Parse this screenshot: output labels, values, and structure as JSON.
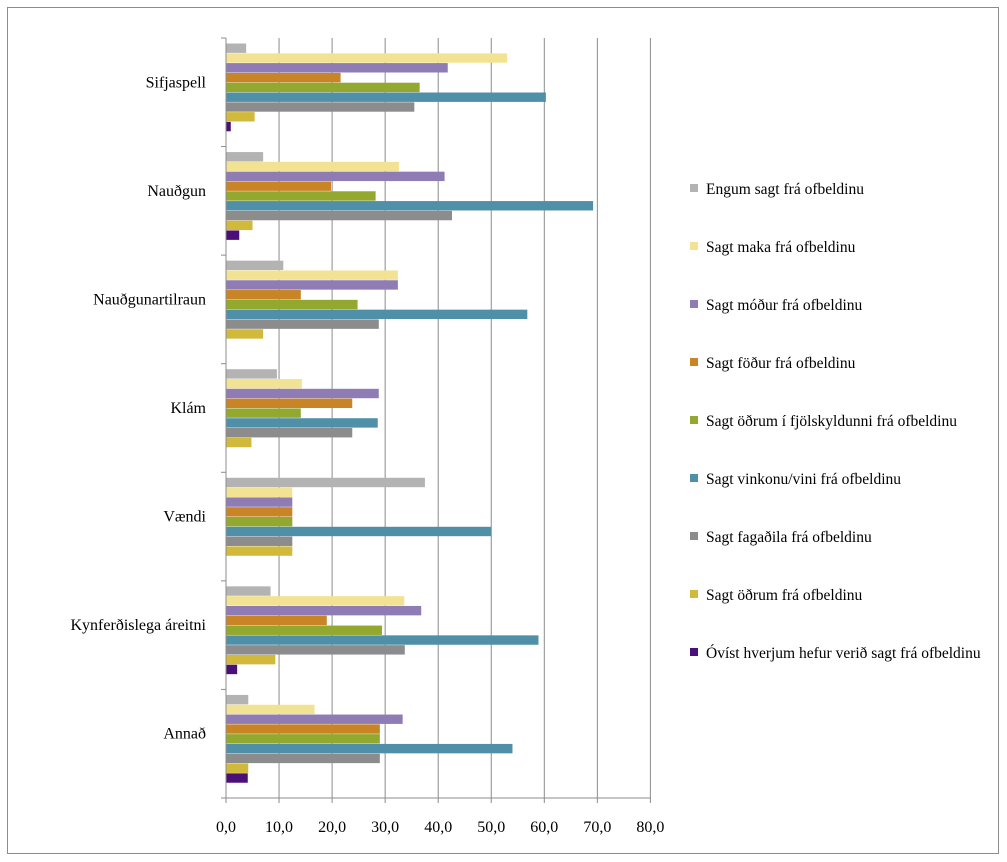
{
  "chart_data": {
    "type": "bar",
    "orientation": "horizontal",
    "categories": [
      "Sifjaspell",
      "Nauðgun",
      "Nauðgunartilraun",
      "Klám",
      "Vændi",
      "Kynferðislega áreitni",
      "Annað"
    ],
    "xlim": [
      0,
      80
    ],
    "xticks": [
      "0,0",
      "10,0",
      "20,0",
      "30,0",
      "40,0",
      "50,0",
      "60,0",
      "70,0",
      "80,0"
    ],
    "grid": "vertical",
    "legend_position": "right",
    "title": "",
    "xlabel": "",
    "ylabel": "",
    "series": [
      {
        "name": "Engum sagt frá ofbeldinu",
        "color": "#b3b3b3",
        "values": [
          3.8,
          7.0,
          10.8,
          9.6,
          37.5,
          8.4,
          4.2
        ]
      },
      {
        "name": "Sagt maka frá ofbeldinu",
        "color": "#f2e394",
        "values": [
          53.0,
          32.6,
          32.4,
          14.3,
          12.5,
          33.6,
          16.7
        ]
      },
      {
        "name": "Sagt móður frá ofbeldinu",
        "color": "#8f7cb5",
        "values": [
          41.8,
          41.2,
          32.4,
          28.8,
          12.5,
          36.8,
          33.3
        ]
      },
      {
        "name": "Sagt föður frá ofbeldinu",
        "color": "#c98425",
        "values": [
          21.6,
          19.8,
          14.1,
          23.8,
          12.5,
          19.0,
          29.0
        ]
      },
      {
        "name": "Sagt öðrum í fjölskyldunni frá ofbeldinu",
        "color": "#93a82e",
        "values": [
          36.5,
          28.2,
          24.8,
          14.1,
          12.5,
          29.4,
          29.0
        ]
      },
      {
        "name": "Sagt vinkonu/vini frá ofbeldinu",
        "color": "#4f8fa7",
        "values": [
          60.3,
          69.2,
          56.8,
          28.6,
          50.0,
          58.9,
          54.0
        ]
      },
      {
        "name": "Sagt fagaðila frá ofbeldinu",
        "color": "#8c8c8c",
        "values": [
          35.5,
          42.6,
          28.8,
          23.8,
          12.5,
          33.7,
          29.0
        ]
      },
      {
        "name": "Sagt öðrum frá ofbeldinu",
        "color": "#d1b93c",
        "values": [
          5.4,
          5.0,
          7.0,
          4.8,
          12.5,
          9.3,
          4.2
        ]
      },
      {
        "name": "Óvíst hverjum hefur verið sagt frá ofbeldinu",
        "color": "#4b0f7a",
        "values": [
          0.9,
          2.5,
          0.0,
          0.0,
          0.0,
          2.1,
          4.1
        ]
      }
    ]
  }
}
